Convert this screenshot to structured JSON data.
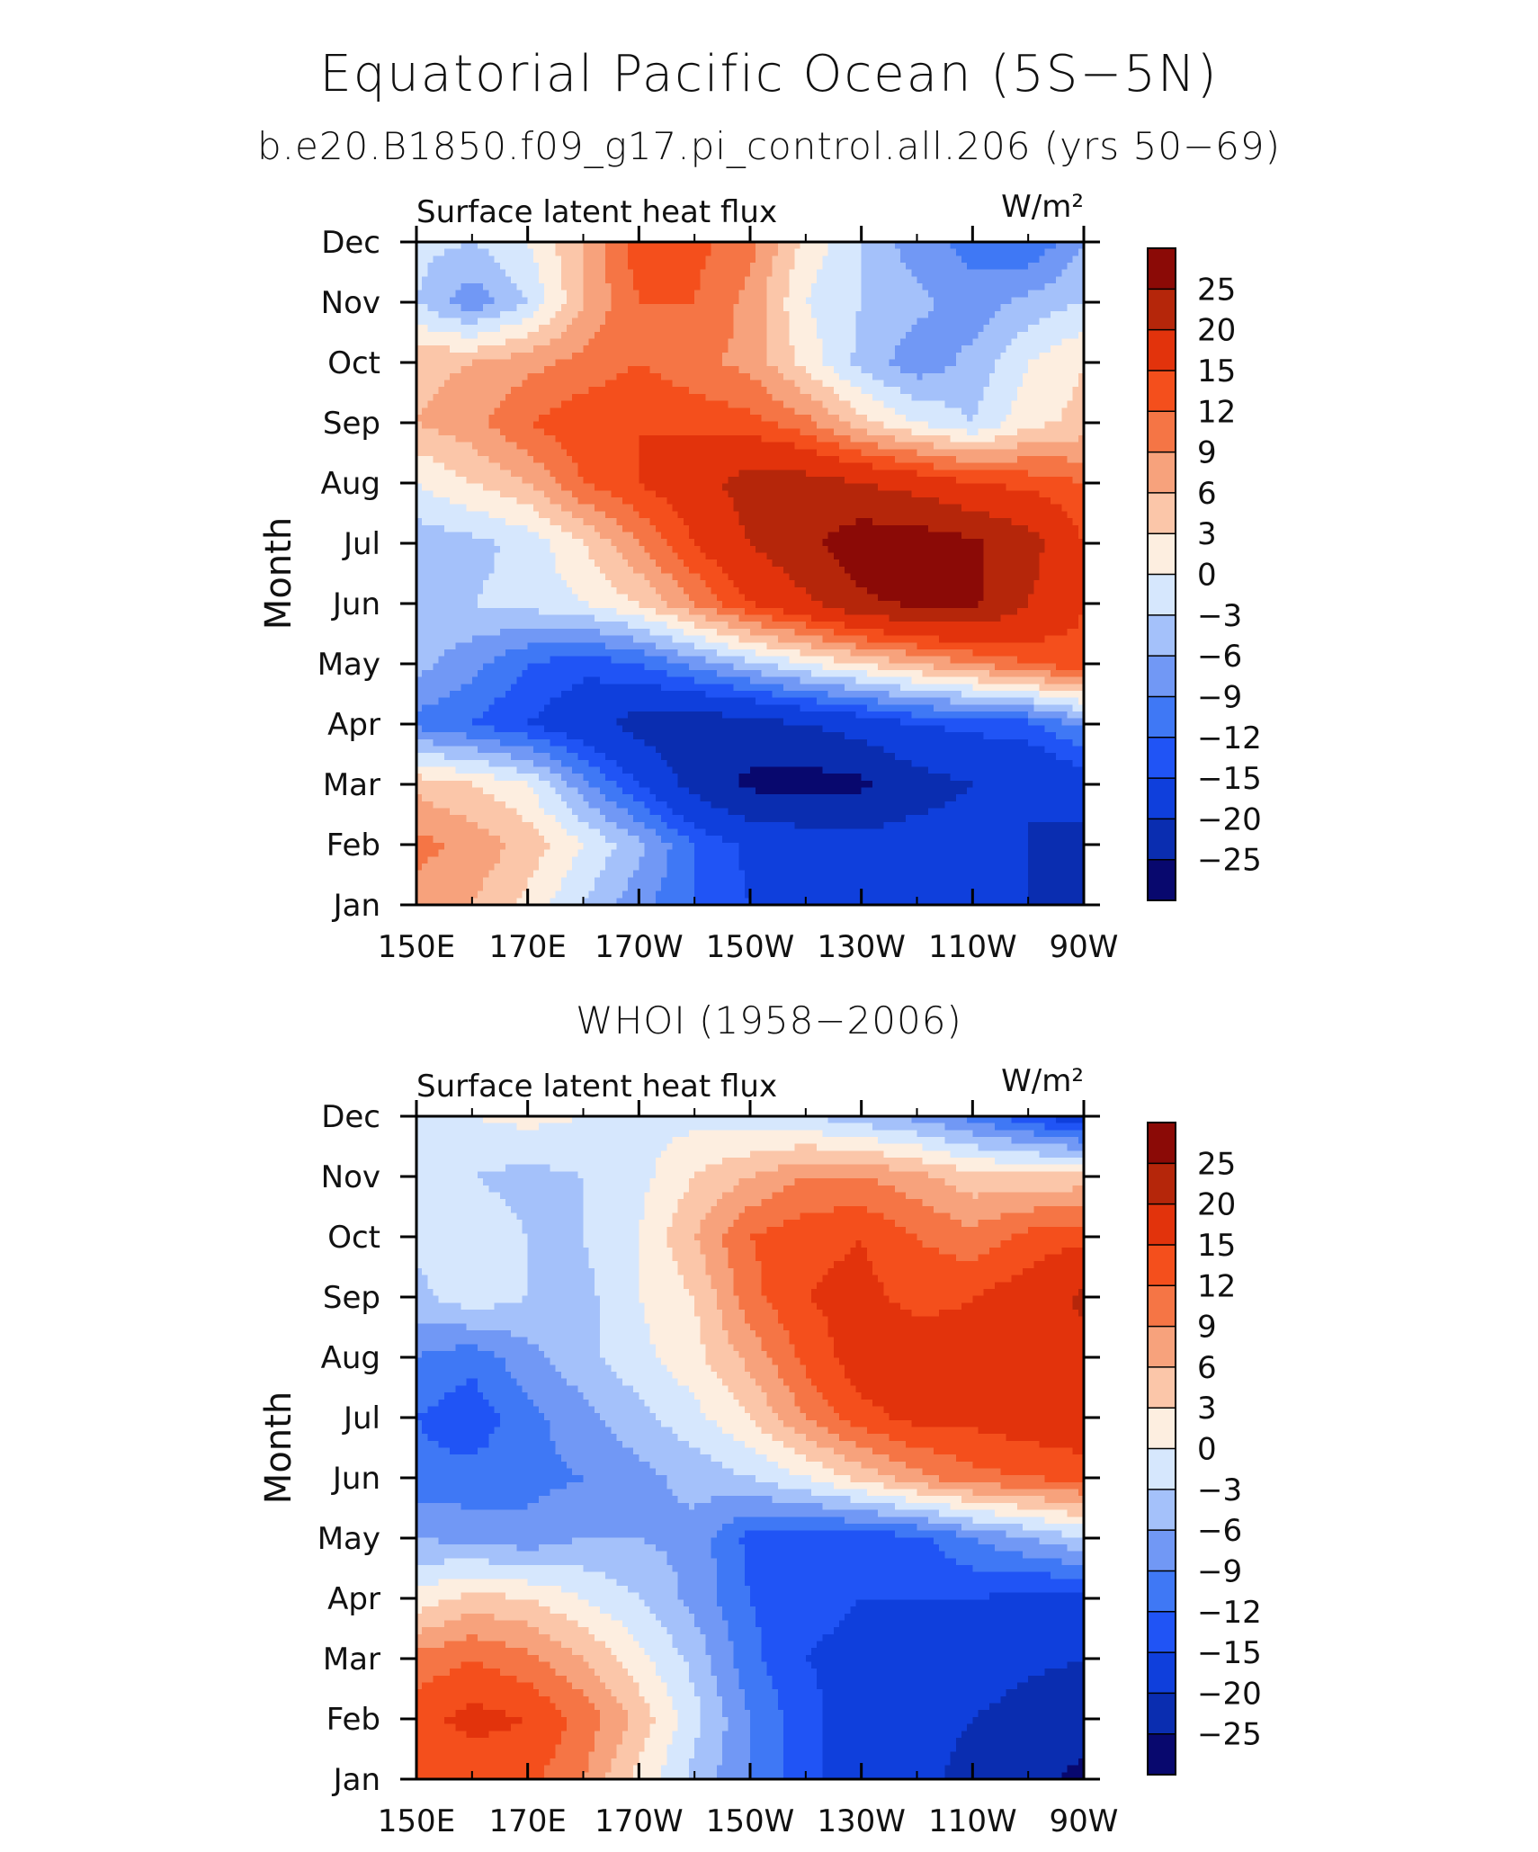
{
  "header": {
    "title": "Equatorial Pacific Ocean (5S−5N)",
    "subtitle": "b.e20.B1850.f09_g17.pi_control.all.206 (yrs 50−69)",
    "panel2_title": "WHOI (1958−2006)"
  },
  "colorbar": {
    "colors": [
      "#08086e",
      "#0a2db0",
      "#0f3fdc",
      "#2054f5",
      "#3f78f5",
      "#7198f5",
      "#a4c1fa",
      "#d6e7fd",
      "#fdeee0",
      "#fbc6a9",
      "#f7a27c",
      "#f57545",
      "#f44f1c",
      "#e2330c",
      "#b5260a",
      "#8b0a06"
    ],
    "labels": [
      "−25",
      "−20",
      "−15",
      "−12",
      "−9",
      "−6",
      "−3",
      "0",
      "3",
      "6",
      "9",
      "12",
      "15",
      "20",
      "25"
    ]
  },
  "chart_data": [
    {
      "type": "heatmap",
      "name": "model",
      "title": "Surface latent heat flux",
      "units": "W/m²",
      "ylabel": "Month",
      "x_tick_labels": [
        "150E",
        "170E",
        "170W",
        "150W",
        "130W",
        "110W",
        "90W"
      ],
      "y_tick_labels": [
        "Jan",
        "Feb",
        "Mar",
        "Apr",
        "May",
        "Jun",
        "Jul",
        "Aug",
        "Sep",
        "Oct",
        "Nov",
        "Dec"
      ],
      "x": [
        "150E",
        "160E",
        "170E",
        "180",
        "170W",
        "160W",
        "150W",
        "140W",
        "130W",
        "120W",
        "110W",
        "100W",
        "90W"
      ],
      "y": [
        "Jan",
        "Feb",
        "Mar",
        "Apr",
        "May",
        "Jun",
        "Jul",
        "Aug",
        "Sep",
        "Oct",
        "Nov",
        "Dec"
      ],
      "z": [
        [
          8,
          6,
          2,
          -3,
          -8,
          -12,
          -15,
          -16,
          -17,
          -18,
          -19,
          -20,
          -22
        ],
        [
          10,
          8,
          5,
          0,
          -5,
          -12,
          -16,
          -17,
          -18,
          -18,
          -18,
          -20,
          -21
        ],
        [
          5,
          3,
          0,
          -8,
          -15,
          -22,
          -26,
          -27,
          -26,
          -22,
          -20,
          -20,
          -18
        ],
        [
          -10,
          -12,
          -15,
          -18,
          -22,
          -23,
          -22,
          -20,
          -18,
          -15,
          -14,
          -13,
          -8
        ],
        [
          -5,
          -8,
          -12,
          -14,
          -12,
          -8,
          -4,
          0,
          3,
          6,
          9,
          12,
          14
        ],
        [
          -4,
          -3,
          -2,
          0,
          3,
          9,
          15,
          19,
          24,
          26,
          26,
          20,
          15
        ],
        [
          -5,
          -4,
          -2,
          3,
          9,
          15,
          20,
          24,
          28,
          28,
          26,
          22,
          15
        ],
        [
          0,
          3,
          6,
          12,
          15,
          18,
          22,
          22,
          20,
          18,
          15,
          14,
          12
        ],
        [
          6,
          8,
          12,
          14,
          15,
          14,
          13,
          10,
          4,
          0,
          -3,
          2,
          4
        ],
        [
          5,
          6,
          8,
          10,
          12,
          10,
          8,
          2,
          -4,
          -8,
          -5,
          0,
          3
        ],
        [
          -3,
          -8,
          -3,
          6,
          12,
          12,
          8,
          0,
          -3,
          -5,
          -8,
          -5,
          -3
        ],
        [
          -2,
          -3,
          0,
          6,
          14,
          13,
          10,
          2,
          -3,
          -8,
          -10,
          -12,
          -6
        ]
      ],
      "levels": [
        -25,
        -20,
        -15,
        -12,
        -9,
        -6,
        -3,
        0,
        3,
        6,
        9,
        12,
        15,
        20,
        25
      ]
    },
    {
      "type": "heatmap",
      "name": "observations",
      "title": "Surface latent heat flux",
      "units": "W/m²",
      "ylabel": "Month",
      "x_tick_labels": [
        "150E",
        "170E",
        "170W",
        "150W",
        "130W",
        "110W",
        "90W"
      ],
      "y_tick_labels": [
        "Jan",
        "Feb",
        "Mar",
        "Apr",
        "May",
        "Jun",
        "Jul",
        "Aug",
        "Sep",
        "Oct",
        "Nov",
        "Dec"
      ],
      "x": [
        "150E",
        "160E",
        "170E",
        "180",
        "170W",
        "160W",
        "150W",
        "140W",
        "130W",
        "120W",
        "110W",
        "100W",
        "90W"
      ],
      "y": [
        "Jan",
        "Feb",
        "Mar",
        "Apr",
        "May",
        "Jun",
        "Jul",
        "Aug",
        "Sep",
        "Oct",
        "Nov",
        "Dec"
      ],
      "z": [
        [
          12,
          13,
          13,
          9,
          2,
          -4,
          -9,
          -14,
          -17,
          -18,
          -22,
          -24,
          -26
        ],
        [
          14,
          16,
          15,
          11,
          5,
          -2,
          -9,
          -14,
          -17,
          -18,
          -20,
          -22,
          -23
        ],
        [
          10,
          12,
          10,
          6,
          1,
          -4,
          -11,
          -15,
          -16,
          -16,
          -17,
          -19,
          -20
        ],
        [
          1,
          4,
          3,
          0,
          -3,
          -7,
          -12,
          -14,
          -15,
          -15,
          -15,
          -16,
          -17
        ],
        [
          -6,
          -7,
          -8,
          -6,
          -6,
          -7,
          -13,
          -14,
          -14,
          -13,
          -9,
          -6,
          -3
        ],
        [
          -11,
          -11,
          -10,
          -9,
          -7,
          -5,
          -3,
          0,
          4,
          8,
          11,
          12,
          13
        ],
        [
          -12,
          -14,
          -10,
          -7,
          -4,
          -1,
          3,
          9,
          14,
          16,
          16,
          17,
          18
        ],
        [
          -9,
          -11,
          -7,
          -4,
          -1,
          2,
          7,
          13,
          17,
          17,
          16,
          17,
          18
        ],
        [
          -4,
          -1,
          -3,
          -4,
          0,
          3,
          11,
          15,
          16,
          14,
          15,
          17,
          21
        ],
        [
          -2,
          -1,
          -3,
          -3,
          0,
          6,
          12,
          14,
          15,
          12,
          10,
          13,
          14
        ],
        [
          -3,
          -3,
          -4,
          -3,
          -1,
          3,
          6,
          9,
          9,
          7,
          4,
          4,
          4
        ],
        [
          -1,
          0,
          1,
          0,
          -1,
          -1,
          -2,
          -3,
          -5,
          -7,
          -10,
          -14,
          -18
        ]
      ],
      "levels": [
        -25,
        -20,
        -15,
        -12,
        -9,
        -6,
        -3,
        0,
        3,
        6,
        9,
        12,
        15,
        20,
        25
      ]
    }
  ]
}
